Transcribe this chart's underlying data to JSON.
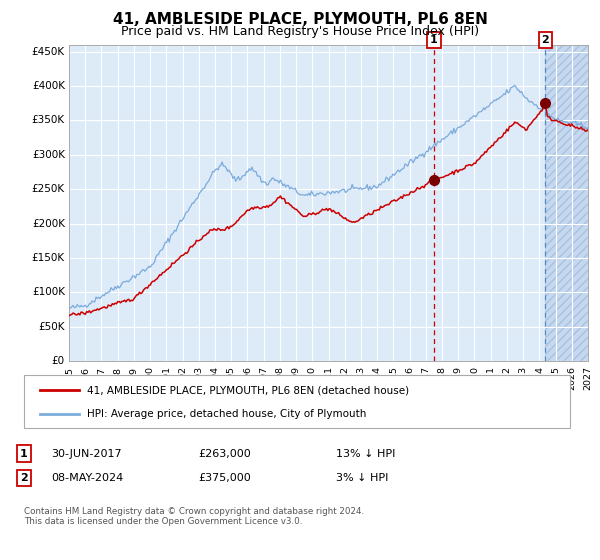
{
  "title": "41, AMBLESIDE PLACE, PLYMOUTH, PL6 8EN",
  "subtitle": "Price paid vs. HM Land Registry's House Price Index (HPI)",
  "ylim": [
    0,
    460000
  ],
  "xlim_year": [
    1995,
    2027
  ],
  "yticks": [
    0,
    50000,
    100000,
    150000,
    200000,
    250000,
    300000,
    350000,
    400000,
    450000
  ],
  "ytick_labels": [
    "£0",
    "£50K",
    "£100K",
    "£150K",
    "£200K",
    "£250K",
    "£300K",
    "£350K",
    "£400K",
    "£450K"
  ],
  "xtick_years": [
    1995,
    1996,
    1997,
    1998,
    1999,
    2000,
    2001,
    2002,
    2003,
    2004,
    2005,
    2006,
    2007,
    2008,
    2009,
    2010,
    2011,
    2012,
    2013,
    2014,
    2015,
    2016,
    2017,
    2018,
    2019,
    2020,
    2021,
    2022,
    2023,
    2024,
    2025,
    2026,
    2027
  ],
  "hpi_color": "#7aabdc",
  "price_color": "#cc0000",
  "marker_color": "#7a0000",
  "vline1_color": "#cc0000",
  "vline2_color": "#5588bb",
  "bg_color": "#ddeaf8",
  "grid_color": "#ffffff",
  "point1_date": "30-JUN-2017",
  "point1_price": 263000,
  "point1_hpi_pct": "13%",
  "point1_year": 2017.5,
  "point2_date": "08-MAY-2024",
  "point2_price": 375000,
  "point2_hpi_pct": "3%",
  "point2_year": 2024.36,
  "legend_label1": "41, AMBLESIDE PLACE, PLYMOUTH, PL6 8EN (detached house)",
  "legend_label2": "HPI: Average price, detached house, City of Plymouth",
  "footnote": "Contains HM Land Registry data © Crown copyright and database right 2024.\nThis data is licensed under the Open Government Licence v3.0.",
  "title_fontsize": 11,
  "subtitle_fontsize": 9
}
